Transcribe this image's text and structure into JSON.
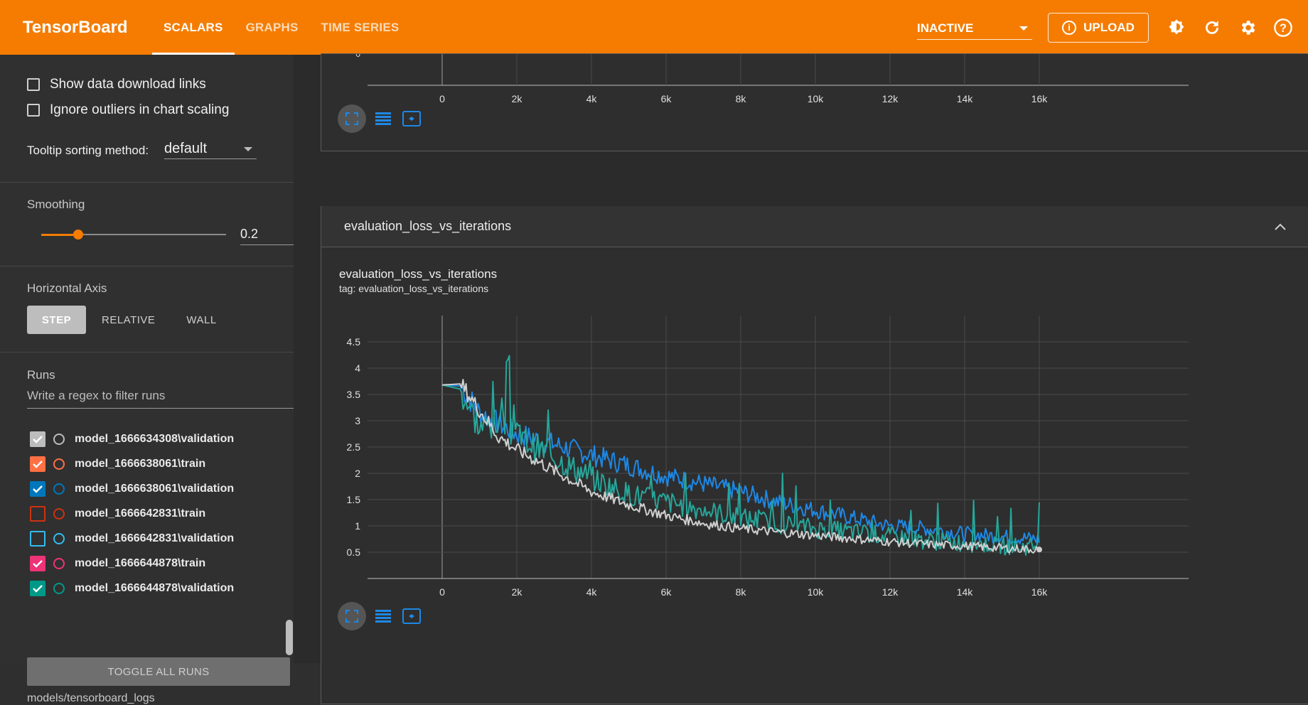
{
  "header": {
    "logo": "TensorBoard",
    "tabs": [
      {
        "label": "SCALARS",
        "active": true
      },
      {
        "label": "GRAPHS",
        "active": false
      },
      {
        "label": "TIME SERIES",
        "active": false
      }
    ],
    "status_select": "INACTIVE",
    "upload_label": "UPLOAD",
    "icons": [
      "brightness-icon",
      "refresh-icon",
      "settings-icon",
      "help-icon"
    ]
  },
  "sidebar": {
    "show_download_links": "Show data download links",
    "ignore_outliers": "Ignore outliers in chart scaling",
    "tooltip_label": "Tooltip sorting method:",
    "tooltip_value": "default",
    "smoothing_label": "Smoothing",
    "smoothing_value": "0.2",
    "smoothing_fraction": 0.2,
    "horizontal_axis_label": "Horizontal Axis",
    "axis_options": [
      {
        "label": "STEP",
        "active": true
      },
      {
        "label": "RELATIVE",
        "active": false
      },
      {
        "label": "WALL",
        "active": false
      }
    ],
    "runs_label": "Runs",
    "runs_filter_placeholder": "Write a regex to filter runs",
    "runs": [
      {
        "name": "model_1666634308\\validation",
        "checked": true,
        "color": "#bdbdbd"
      },
      {
        "name": "model_1666638061\\train",
        "checked": true,
        "color": "#ff7043"
      },
      {
        "name": "model_1666638061\\validation",
        "checked": true,
        "color": "#0077bb"
      },
      {
        "name": "model_1666642831\\train",
        "checked": false,
        "color": "#cc3311"
      },
      {
        "name": "model_1666642831\\validation",
        "checked": false,
        "color": "#33bbee"
      },
      {
        "name": "model_1666644878\\train",
        "checked": true,
        "color": "#ee3377"
      },
      {
        "name": "model_1666644878\\validation",
        "checked": true,
        "color": "#009988"
      }
    ],
    "toggle_all_label": "TOGGLE ALL RUNS",
    "log_dir": "models/tensorboard_logs"
  },
  "main": {
    "top_chart": {
      "x_ticks": [
        "0",
        "2k",
        "4k",
        "6k",
        "8k",
        "10k",
        "12k",
        "14k",
        "16k"
      ],
      "y_tick_visible": "0"
    },
    "group_title": "evaluation_loss_vs_iterations",
    "chart": {
      "title": "evaluation_loss_vs_iterations",
      "tag": "tag: evaluation_loss_vs_iterations"
    }
  },
  "chart_data": {
    "type": "line",
    "title": "evaluation_loss_vs_iterations",
    "x_ticks": [
      "0",
      "2k",
      "4k",
      "6k",
      "8k",
      "10k",
      "12k",
      "14k",
      "16k"
    ],
    "y_ticks": [
      "0.5",
      "1",
      "1.5",
      "2",
      "2.5",
      "3",
      "3.5",
      "4",
      "4.5"
    ],
    "xlim": [
      -2000,
      20000
    ],
    "ylim": [
      0,
      5
    ],
    "grid": true,
    "series": [
      {
        "name": "model_1666638061\\validation",
        "color": "#1e88e5",
        "x": [
          0,
          500,
          1000,
          1500,
          2000,
          3000,
          4000,
          5000,
          6000,
          7000,
          8000,
          9000,
          10000,
          11000,
          12000,
          13000,
          14000,
          15000,
          16000
        ],
        "y": [
          3.68,
          3.66,
          3.15,
          2.95,
          2.75,
          2.55,
          2.35,
          2.15,
          1.95,
          1.8,
          1.65,
          1.45,
          1.3,
          1.15,
          1.0,
          0.95,
          0.85,
          0.8,
          0.75
        ]
      },
      {
        "name": "model_1666644878\\validation",
        "color": "#26a69a",
        "x": [
          0,
          500,
          1000,
          1500,
          2000,
          3000,
          4000,
          5000,
          6000,
          7000,
          8000,
          9000,
          10000,
          11000,
          12000,
          13000,
          14000,
          15000,
          16000
        ],
        "y": [
          3.68,
          3.6,
          2.85,
          2.95,
          2.7,
          2.3,
          1.9,
          1.6,
          1.45,
          1.3,
          1.15,
          1.05,
          0.95,
          0.88,
          0.8,
          0.72,
          0.68,
          0.62,
          0.6
        ]
      },
      {
        "name": "model_1666634308\\validation",
        "color": "#cfcfcf",
        "x": [
          0,
          500,
          1000,
          1500,
          2000,
          3000,
          4000,
          5000,
          6000,
          7000,
          8000,
          9000,
          10000,
          11000,
          12000,
          13000,
          14000,
          15000,
          16000
        ],
        "y": [
          3.68,
          3.7,
          3.2,
          2.7,
          2.45,
          2.05,
          1.65,
          1.4,
          1.2,
          1.05,
          0.95,
          0.88,
          0.82,
          0.76,
          0.7,
          0.65,
          0.62,
          0.58,
          0.55
        ]
      }
    ]
  }
}
